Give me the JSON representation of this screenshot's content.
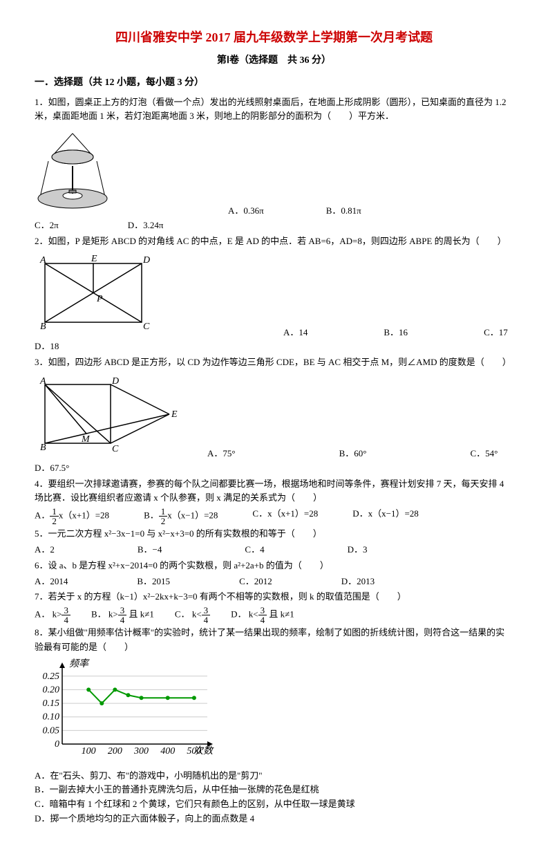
{
  "header": {
    "title": "四川省雅安中学 2017 届九年级数学上学期第一次月考试题",
    "subtitle": "第Ⅰ卷（选择题　共 36 分）"
  },
  "section": {
    "title": "一．选择题（共 12 小题，每小题 3 分）"
  },
  "q1": {
    "text": "1．如图，圆桌正上方的灯泡（看做一个点）发出的光线照射桌面后，在地面上形成阴影（圆形），已知桌面的直径为 1.2 米，桌面距地面 1 米，若灯泡距离地面 3 米，则地上的阴影部分的面积为（　　）平方米．",
    "optA": "A．0.36π",
    "optB": "B．0.81π",
    "optC": "C．2π",
    "optD": "D．3.24π"
  },
  "q2": {
    "text": "2．如图，P 是矩形 ABCD 的对角线 AC 的中点，E 是 AD 的中点．若 AB=6，AD=8，则四边形 ABPE 的周长为（　　）",
    "optA": "A．14",
    "optB": "B．16",
    "optC": "C．17",
    "optD": "D．18",
    "labels": {
      "A": "A",
      "B": "B",
      "C": "C",
      "D": "D",
      "E": "E",
      "P": "P"
    }
  },
  "q3": {
    "text": "3．如图，四边形 ABCD 是正方形，以 CD 为边作等边三角形 CDE，BE 与 AC 相交于点 M，则∠AMD 的度数是（　　）",
    "optA": "A．75°",
    "optB": "B．60°",
    "optC": "C．54°",
    "optD": "D．67.5°",
    "labels": {
      "A": "A",
      "B": "B",
      "C": "C",
      "D": "D",
      "E": "E",
      "M": "M"
    }
  },
  "q4": {
    "text": "4．要组织一次排球邀请赛，参赛的每个队之间都要比赛一场，根据场地和时间等条件，赛程计划安排 7 天，每天安排 4 场比赛．设比赛组织者应邀请 x 个队参赛，则 x 满足的关系式为（　　）",
    "optA_pre": "A．",
    "optA_post": "x（x+1）=28",
    "optB_pre": "B．",
    "optB_post": "x（x−1）=28",
    "optC": "C．x（x+1）=28",
    "optD": "D．x（x−1）=28"
  },
  "q5": {
    "text": "5．一元二次方程 x²−3x−1=0 与 x²−x+3=0 的所有实数根的和等于（　　）",
    "optA": "A．2",
    "optB": "B．−4",
    "optC": "C．4",
    "optD": "D．3"
  },
  "q6": {
    "text": "6．设 a、b 是方程 x²+x−2014=0 的两个实数根，则 a²+2a+b 的值为（　　）",
    "optA": "A．2014",
    "optB": "B．2015",
    "optC": "C．2012",
    "optD": "D．2013"
  },
  "q7": {
    "text": "7．若关于 x 的方程（k−1）x²−2kx+k−3=0 有两个不相等的实数根，则 k 的取值范围是（　　）",
    "optA_pre": "A．",
    "optA_k": "k",
    "optA_gt": ">",
    "optB_pre": "B．",
    "optB_k": "k",
    "optB_gt": ">",
    "optB_post": "且 k≠1",
    "optC_pre": "C．",
    "optC_k": "k",
    "optC_lt": "<",
    "optD_pre": "D．",
    "optD_k": "k",
    "optD_lt": "<",
    "optD_post": "且 k≠1",
    "frac_num": "3",
    "frac_den": "4"
  },
  "q8": {
    "text": "8．某小组做\"用频率估计概率\"的实验时，统计了某一结果出现的频率，绘制了如图的折线统计图，则符合这一结果的实验最有可能的是（　　）",
    "optA": "A．在\"石头、剪刀、布\"的游戏中，小明随机出的是\"剪刀\"",
    "optB": "B．一副去掉大小王的普通扑克牌洗匀后，从中任抽一张牌的花色是红桃",
    "optC": "C．暗箱中有 1 个红球和 2 个黄球，它们只有颜色上的区别，从中任取一球是黄球",
    "optD": "D．掷一个质地均匀的正六面体骰子，向上的面点数是 4",
    "chart": {
      "ylabel": "频率",
      "xlabel": "次数",
      "yticks": [
        "0",
        "0.05",
        "0.10",
        "0.15",
        "0.20",
        "0.25"
      ],
      "xticks": [
        "100",
        "200",
        "300",
        "400",
        "500"
      ],
      "points_x": [
        100,
        150,
        200,
        250,
        300,
        400,
        500
      ],
      "points_y": [
        0.2,
        0.15,
        0.2,
        0.18,
        0.17,
        0.17,
        0.17
      ],
      "line_color": "#009900",
      "marker_color": "#009900",
      "grid_color": "#cccccc",
      "axis_color": "#000000",
      "background": "#ffffff",
      "ylim": [
        0,
        0.28
      ],
      "xlim": [
        0,
        550
      ]
    }
  },
  "half": {
    "num": "1",
    "den": "2"
  }
}
